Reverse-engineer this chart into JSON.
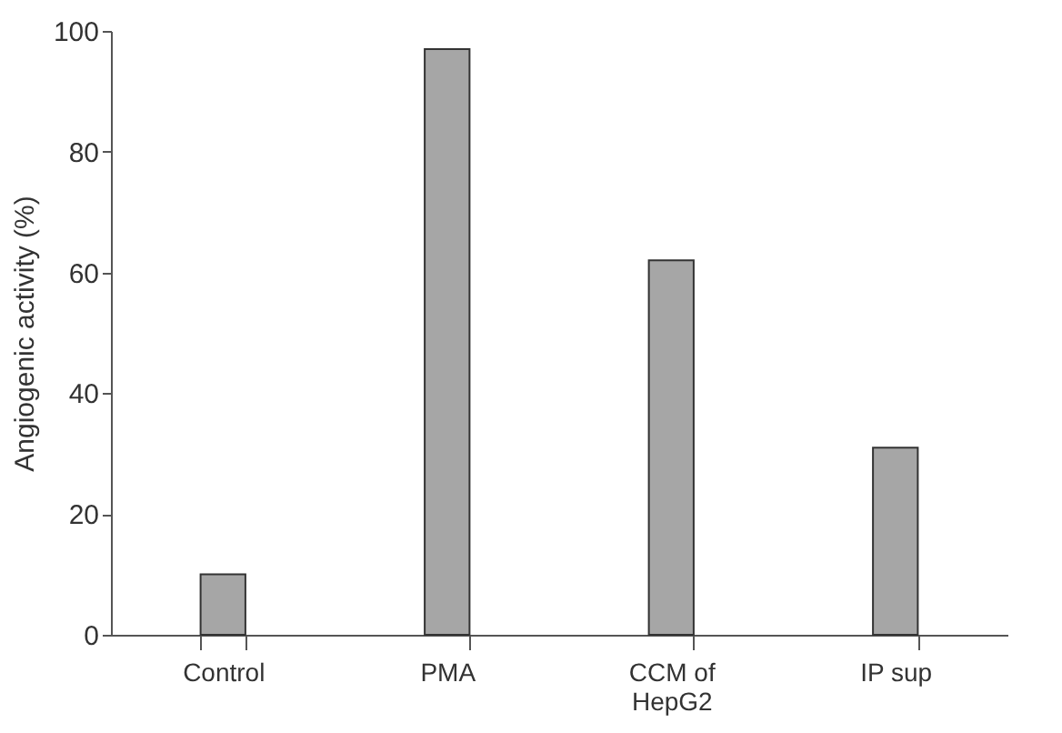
{
  "chart_data": {
    "type": "bar",
    "ylabel": "Angiogenic activity (%)",
    "categories": [
      "Control",
      "PMA",
      "CCM of\nHepG2",
      "IP sup"
    ],
    "values": [
      10,
      97,
      62,
      31
    ],
    "color": "#a6a6a6",
    "ylim": [
      0,
      100
    ],
    "yticks": [
      0,
      20,
      40,
      60,
      80,
      100
    ],
    "grid": false
  }
}
